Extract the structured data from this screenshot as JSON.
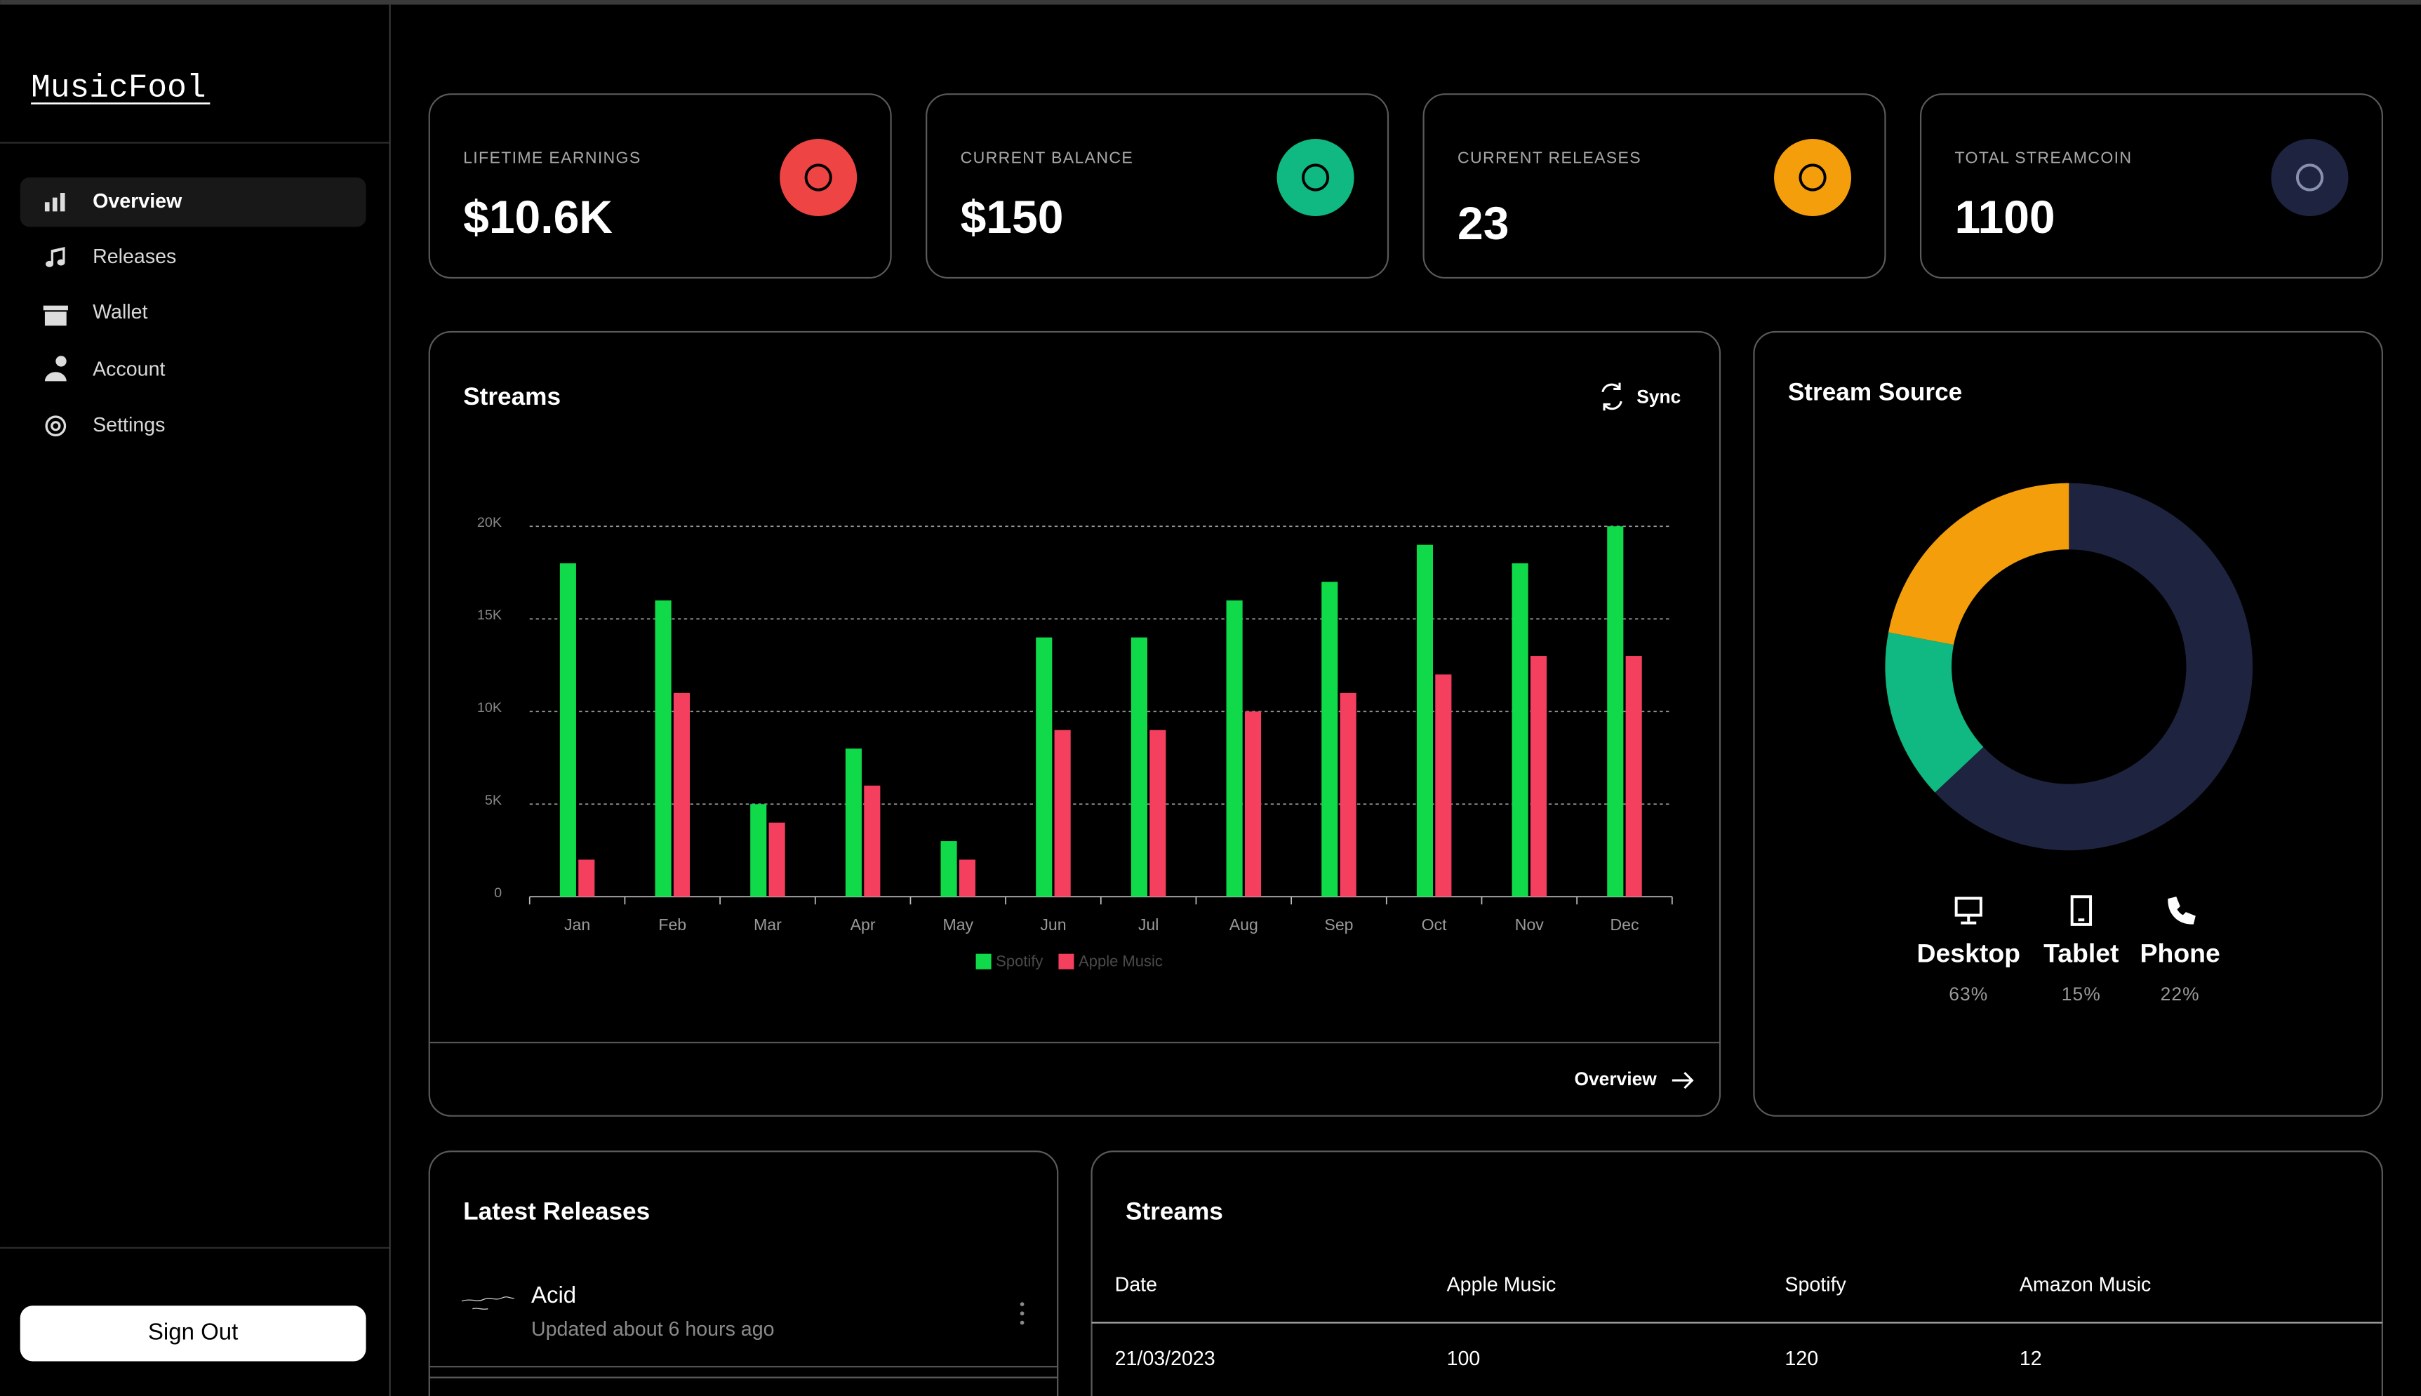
{
  "sidebar": {
    "brand": "MusicFool",
    "nav": [
      "Overview",
      "Releases",
      "Wallet",
      "Account",
      "Settings"
    ],
    "sign_out": "Sign Out"
  },
  "stats": [
    {
      "label": "LIFETIME EARNINGS",
      "value": "$10.6K",
      "color": "#ef4444"
    },
    {
      "label": "CURRENT BALANCE",
      "value": "$150",
      "color": "#10b981"
    },
    {
      "label": "CURRENT RELEASES",
      "value": "23",
      "color": "#f59e0b"
    },
    {
      "label": "TOTAL STREAMCOIN",
      "value": "1100",
      "color": "#1e2340"
    }
  ],
  "streams_card": {
    "title": "Streams",
    "sync": "Sync",
    "footer_link": "Overview"
  },
  "source_card": {
    "title": "Stream Source"
  },
  "chart_data": [
    {
      "type": "bar",
      "categories": [
        "Jan",
        "Feb",
        "Mar",
        "Apr",
        "May",
        "Jun",
        "Jul",
        "Aug",
        "Sep",
        "Oct",
        "Nov",
        "Dec"
      ],
      "series": [
        {
          "name": "Spotify",
          "color": "#10d94a",
          "values": [
            18000,
            16000,
            5000,
            8000,
            3000,
            14000,
            14000,
            16000,
            17000,
            19000,
            18000,
            20000
          ]
        },
        {
          "name": "Apple Music",
          "color": "#f43f5e",
          "values": [
            2000,
            11000,
            4000,
            6000,
            2000,
            9000,
            9000,
            10000,
            11000,
            12000,
            13000,
            13000
          ]
        }
      ],
      "ylim": [
        0,
        20000
      ],
      "yticks": [
        0,
        {
          "value": 5000,
          "label": "5K"
        },
        {
          "value": 10000,
          "label": "10K"
        },
        {
          "value": 15000,
          "label": "15K"
        },
        {
          "value": 20000,
          "label": "20K"
        }
      ],
      "grid": true
    },
    {
      "type": "pie",
      "categories": [
        "Desktop",
        "Tablet",
        "Phone"
      ],
      "values": [
        63,
        15,
        22
      ],
      "value_labels": [
        "63%",
        "15%",
        "22%"
      ],
      "colors": [
        "#1e2340",
        "#10b981",
        "#f59e0b"
      ]
    }
  ],
  "latest_releases": {
    "title": "Latest Releases",
    "items": [
      {
        "name": "Acid",
        "updated": "Updated about 6 hours ago"
      }
    ]
  },
  "streams_table": {
    "title": "Streams",
    "columns": [
      "Date",
      "Apple Music",
      "Spotify",
      "Amazon Music"
    ],
    "rows": [
      [
        "21/03/2023",
        "100",
        "120",
        "12"
      ]
    ]
  }
}
